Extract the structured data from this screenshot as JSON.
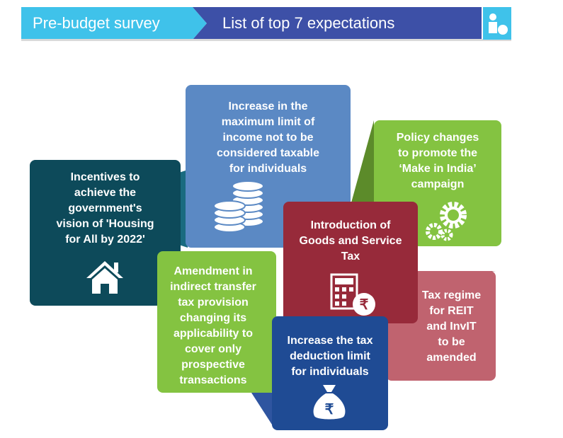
{
  "header": {
    "left": "Pre-budget survey",
    "right": "List of top 7 expectations"
  },
  "boxes": [
    {
      "lines": [
        "Incentives to",
        "achieve the",
        "government's",
        "vision of 'Housing",
        "for All by 2022'"
      ]
    },
    {
      "lines": [
        "Increase in the",
        "maximum limit of",
        "income not to be",
        "considered taxable",
        "for individuals"
      ]
    },
    {
      "lines": [
        "Policy changes",
        "to promote the",
        "‘Make in India’",
        "campaign"
      ]
    },
    {
      "lines": [
        "Tax regime",
        "for REIT",
        "and InvIT",
        "to be",
        "amended"
      ]
    },
    {
      "lines": [
        "Amendment in",
        "indirect transfer",
        "tax provision",
        "changing its",
        "applicability to",
        "cover only",
        "prospective",
        "transactions"
      ]
    },
    {
      "lines": [
        "Introduction of",
        "Goods and Service",
        "Tax"
      ]
    },
    {
      "lines": [
        "Increase the tax",
        "deduction limit",
        "for individuals"
      ]
    }
  ]
}
